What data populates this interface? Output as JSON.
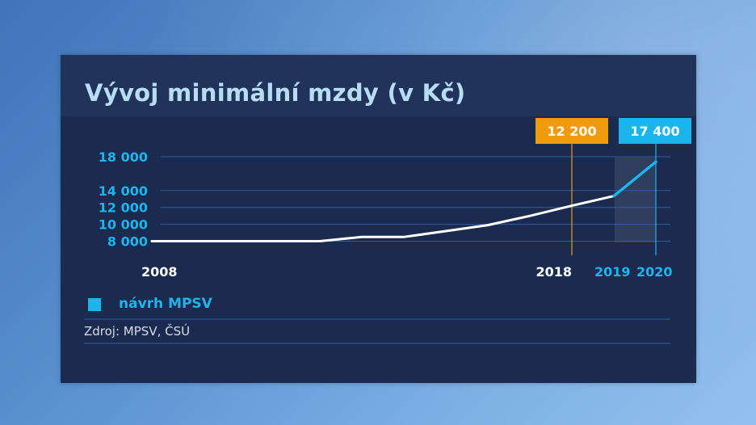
{
  "chart_data": {
    "type": "line",
    "title": "Vývoj minimální mzdy (v Kč)",
    "y_ticks": [
      18000,
      14000,
      12000,
      10000,
      8000
    ],
    "y_tick_labels": [
      "18 000",
      "14 000",
      "12 000",
      "10 000",
      "8 000"
    ],
    "x_tick_labels": {
      "2008": "2008",
      "2018": "2018",
      "2019": "2019",
      "2020": "2020"
    },
    "xlim": [
      2008,
      2020
    ],
    "ylim": [
      6000,
      18000
    ],
    "series": [
      {
        "x": [
          2008,
          2009,
          2010,
          2011,
          2012,
          2013,
          2014,
          2015,
          2016,
          2017,
          2018,
          2019
        ],
        "y": [
          8000,
          8000,
          8000,
          8000,
          8000,
          8500,
          8500,
          9200,
          9900,
          11000,
          12200,
          13350
        ],
        "color": "#ffffff"
      },
      {
        "name": "návrh MPSV",
        "x": [
          2019,
          2020
        ],
        "y": [
          13350,
          17400
        ],
        "color": "#1ab5ec"
      }
    ],
    "annotations": [
      {
        "x": 2018,
        "label": "12 200",
        "color": "#f09a0c"
      },
      {
        "x": 2020,
        "label": "17 400",
        "color": "#1ab5ec"
      }
    ],
    "legend": {
      "label": "návrh MPSV",
      "color": "#1ab5ec",
      "position": "bottom-left"
    },
    "source": "Zdroj: MPSV, ČSÚ",
    "grid": true
  }
}
